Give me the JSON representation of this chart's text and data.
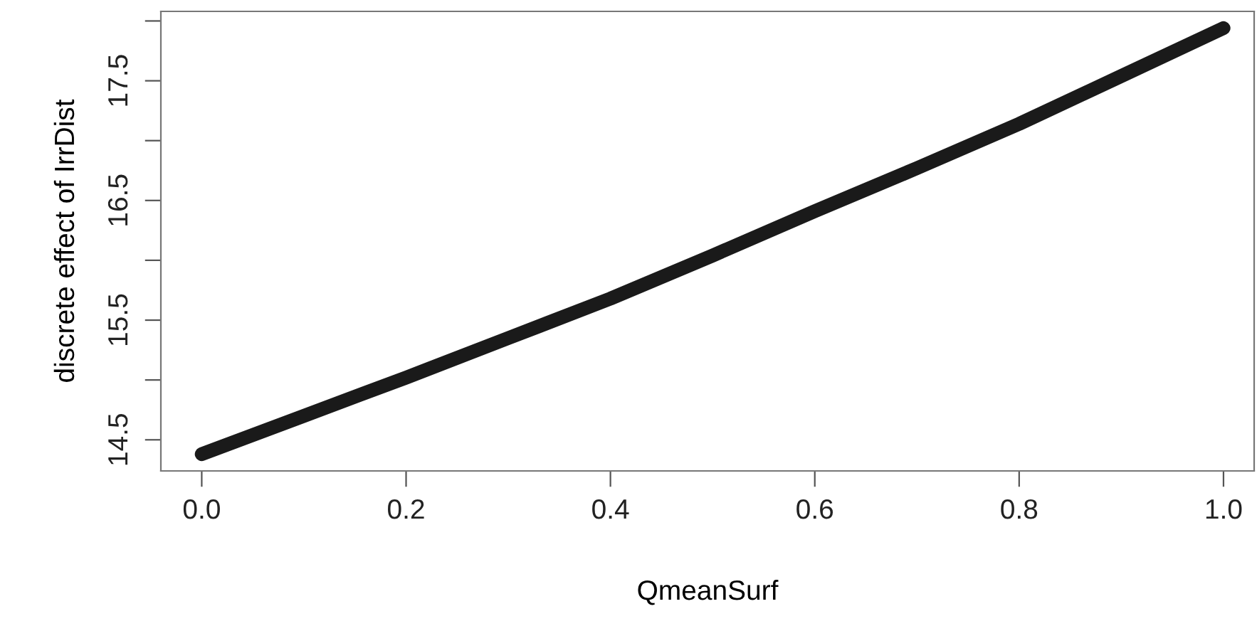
{
  "chart_data": {
    "type": "line",
    "xlabel": "QmeanSurf",
    "ylabel": "discrete effect of IrrDist",
    "x": [
      0,
      0.1,
      0.2,
      0.3,
      0.4,
      0.5,
      0.6,
      0.7,
      0.8,
      0.9,
      1.0
    ],
    "series": [
      {
        "color": "#1a1a1a",
        "values": [
          14.38,
          14.7,
          15.02,
          15.35,
          15.68,
          16.04,
          16.41,
          16.77,
          17.14,
          17.54,
          17.94
        ]
      }
    ],
    "xlim": [
      -0.04,
      1.03
    ],
    "ylim": [
      14.24,
      18.08
    ],
    "xticks": [
      {
        "value": 0,
        "label": "0.0"
      },
      {
        "value": 0.2,
        "label": "0.2"
      },
      {
        "value": 0.4,
        "label": "0.4"
      },
      {
        "value": 0.6,
        "label": "0.6"
      },
      {
        "value": 0.8,
        "label": "0.8"
      },
      {
        "value": 1.0,
        "label": "1.0"
      }
    ],
    "yticks": [
      14.5,
      {
        "value": 15.0,
        "label": null
      },
      15.5,
      {
        "value": 16.0,
        "label": null
      },
      16.5,
      {
        "value": 17.0,
        "label": null
      },
      17.5,
      {
        "value": 18.0,
        "label": null
      }
    ],
    "grid": false,
    "legend": false,
    "marker": "none",
    "line_style": "solid"
  }
}
